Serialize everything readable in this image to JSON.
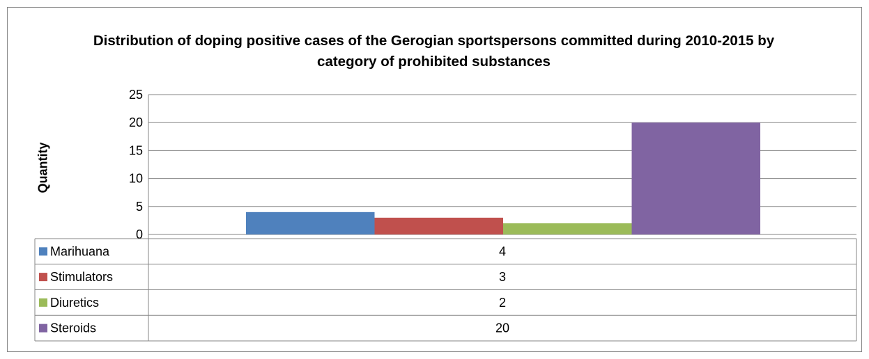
{
  "chart_data": {
    "type": "bar",
    "title": "Distribution of doping positive cases of the Gerogian sportspersons committed during 2010-2015 by category of prohibited substances",
    "xlabel": "",
    "ylabel": "Quantity",
    "ylim": [
      0,
      25
    ],
    "yticks": [
      "0",
      "5",
      "10",
      "15",
      "20",
      "25"
    ],
    "grid": true,
    "legend": "data table below chart",
    "series": [
      {
        "name": "Marihuana",
        "values": [
          4
        ],
        "color": "#4F81BD"
      },
      {
        "name": "Stimulators",
        "values": [
          3
        ],
        "color": "#C0504D"
      },
      {
        "name": "Diuretics",
        "values": [
          2
        ],
        "color": "#9BBB59"
      },
      {
        "name": "Steroids",
        "values": [
          20
        ],
        "color": "#8064A2"
      }
    ]
  }
}
